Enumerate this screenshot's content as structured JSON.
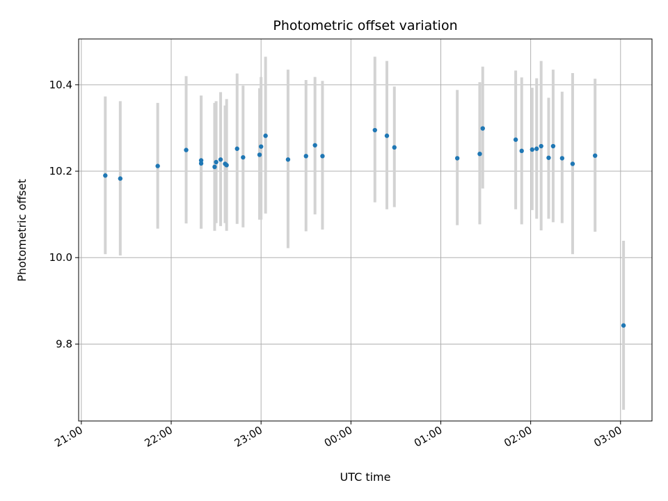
{
  "chart_data": {
    "type": "scatter",
    "title": "Photometric offset variation",
    "xlabel": "UTC time",
    "ylabel": "Photometric offset",
    "xlim_hours": [
      20.97,
      27.35
    ],
    "ylim": [
      9.622,
      10.506
    ],
    "x_ticks": [
      {
        "value": 21.0,
        "label": "21:00"
      },
      {
        "value": 22.0,
        "label": "22:00"
      },
      {
        "value": 23.0,
        "label": "23:00"
      },
      {
        "value": 24.0,
        "label": "00:00"
      },
      {
        "value": 25.0,
        "label": "01:00"
      },
      {
        "value": 26.0,
        "label": "02:00"
      },
      {
        "value": 27.0,
        "label": "03:00"
      }
    ],
    "y_ticks": [
      {
        "value": 9.8,
        "label": "9.8"
      },
      {
        "value": 10.0,
        "label": "10.0"
      },
      {
        "value": 10.2,
        "label": "10.2"
      },
      {
        "value": 10.4,
        "label": "10.4"
      }
    ],
    "grid": true,
    "point_color": "#1f77b4",
    "errorbar_color": "#d3d3d3",
    "points": [
      {
        "t": "21:16",
        "y": 10.19,
        "lo": 10.008,
        "hi": 10.373
      },
      {
        "t": "21:26",
        "y": 10.183,
        "lo": 10.005,
        "hi": 10.362
      },
      {
        "t": "21:51",
        "y": 10.212,
        "lo": 10.067,
        "hi": 10.358
      },
      {
        "t": "22:10",
        "y": 10.249,
        "lo": 10.079,
        "hi": 10.42
      },
      {
        "t": "22:20",
        "y": 10.225,
        "lo": 10.067,
        "hi": 10.375
      },
      {
        "t": "22:20",
        "y": 10.218,
        "lo": 10.067,
        "hi": 10.375
      },
      {
        "t": "22:29",
        "y": 10.21,
        "lo": 10.062,
        "hi": 10.358
      },
      {
        "t": "22:30",
        "y": 10.221,
        "lo": 10.08,
        "hi": 10.362
      },
      {
        "t": "22:33",
        "y": 10.227,
        "lo": 10.073,
        "hi": 10.383
      },
      {
        "t": "22:36",
        "y": 10.217,
        "lo": 10.08,
        "hi": 10.352
      },
      {
        "t": "22:37",
        "y": 10.214,
        "lo": 10.062,
        "hi": 10.367
      },
      {
        "t": "22:44",
        "y": 10.252,
        "lo": 10.078,
        "hi": 10.426
      },
      {
        "t": "22:48",
        "y": 10.232,
        "lo": 10.07,
        "hi": 10.398
      },
      {
        "t": "22:59",
        "y": 10.238,
        "lo": 10.088,
        "hi": 10.392
      },
      {
        "t": "23:00",
        "y": 10.257,
        "lo": 10.088,
        "hi": 10.418
      },
      {
        "t": "23:03",
        "y": 10.282,
        "lo": 10.102,
        "hi": 10.465
      },
      {
        "t": "23:18",
        "y": 10.227,
        "lo": 10.022,
        "hi": 10.435
      },
      {
        "t": "23:30",
        "y": 10.235,
        "lo": 10.061,
        "hi": 10.411
      },
      {
        "t": "23:36",
        "y": 10.26,
        "lo": 10.1,
        "hi": 10.418
      },
      {
        "t": "23:41",
        "y": 10.235,
        "lo": 10.065,
        "hi": 10.409
      },
      {
        "t": "00:16",
        "y": 10.295,
        "lo": 10.128,
        "hi": 10.465
      },
      {
        "t": "00:24",
        "y": 10.282,
        "lo": 10.112,
        "hi": 10.455
      },
      {
        "t": "00:29",
        "y": 10.255,
        "lo": 10.117,
        "hi": 10.396
      },
      {
        "t": "01:11",
        "y": 10.23,
        "lo": 10.075,
        "hi": 10.388
      },
      {
        "t": "01:26",
        "y": 10.24,
        "lo": 10.077,
        "hi": 10.406
      },
      {
        "t": "01:28",
        "y": 10.299,
        "lo": 10.16,
        "hi": 10.442
      },
      {
        "t": "01:50",
        "y": 10.273,
        "lo": 10.112,
        "hi": 10.433
      },
      {
        "t": "01:54",
        "y": 10.247,
        "lo": 10.077,
        "hi": 10.417
      },
      {
        "t": "02:01",
        "y": 10.25,
        "lo": 10.11,
        "hi": 10.393
      },
      {
        "t": "02:04",
        "y": 10.252,
        "lo": 10.09,
        "hi": 10.415
      },
      {
        "t": "02:07",
        "y": 10.258,
        "lo": 10.063,
        "hi": 10.455
      },
      {
        "t": "02:12",
        "y": 10.231,
        "lo": 10.09,
        "hi": 10.37
      },
      {
        "t": "02:15",
        "y": 10.258,
        "lo": 10.082,
        "hi": 10.435
      },
      {
        "t": "02:21",
        "y": 10.23,
        "lo": 10.08,
        "hi": 10.384
      },
      {
        "t": "02:28",
        "y": 10.217,
        "lo": 10.008,
        "hi": 10.427
      },
      {
        "t": "02:43",
        "y": 10.236,
        "lo": 10.06,
        "hi": 10.414
      },
      {
        "t": "03:02",
        "y": 9.843,
        "lo": 9.648,
        "hi": 10.039
      }
    ]
  }
}
